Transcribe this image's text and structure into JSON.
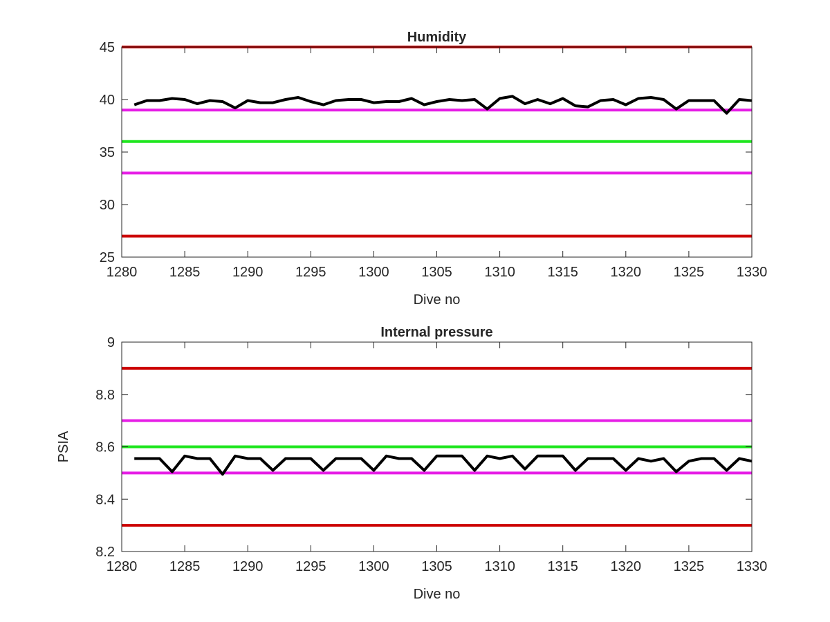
{
  "chart_data": [
    {
      "type": "line",
      "title": "Humidity",
      "xlabel": "Dive no",
      "ylabel": "",
      "xlim": [
        1280,
        1330
      ],
      "ylim": [
        25,
        45
      ],
      "xticks": [
        "1280",
        "1285",
        "1290",
        "1295",
        "1300",
        "1305",
        "1310",
        "1315",
        "1320",
        "1325",
        "1330"
      ],
      "yticks": [
        "25",
        "30",
        "35",
        "40",
        "45"
      ],
      "grid": false,
      "reference_lines": [
        {
          "y": 45,
          "color": "#cc0000"
        },
        {
          "y": 39,
          "color": "#e61ee6"
        },
        {
          "y": 36,
          "color": "#1ee61e"
        },
        {
          "y": 33,
          "color": "#e61ee6"
        },
        {
          "y": 27,
          "color": "#cc0000"
        }
      ],
      "series": [
        {
          "color": "#000000",
          "x": [
            1281,
            1282,
            1283,
            1284,
            1285,
            1286,
            1287,
            1288,
            1289,
            1290,
            1291,
            1292,
            1293,
            1294,
            1295,
            1296,
            1297,
            1298,
            1299,
            1300,
            1301,
            1302,
            1303,
            1304,
            1305,
            1306,
            1307,
            1308,
            1309,
            1310,
            1311,
            1312,
            1313,
            1314,
            1315,
            1316,
            1317,
            1318,
            1319,
            1320,
            1321,
            1322,
            1323,
            1324,
            1325,
            1326,
            1327,
            1328,
            1329,
            1330
          ],
          "y": [
            39.5,
            39.9,
            39.9,
            40.1,
            40.0,
            39.6,
            39.9,
            39.8,
            39.2,
            39.9,
            39.7,
            39.7,
            40.0,
            40.2,
            39.8,
            39.5,
            39.9,
            40.0,
            40.0,
            39.7,
            39.8,
            39.8,
            40.1,
            39.5,
            39.8,
            40.0,
            39.9,
            40.0,
            39.1,
            40.1,
            40.3,
            39.6,
            40.0,
            39.6,
            40.1,
            39.4,
            39.3,
            39.9,
            40.0,
            39.5,
            40.1,
            40.2,
            40.0,
            39.1,
            39.9,
            39.9,
            39.9,
            38.7,
            40.0,
            39.9
          ]
        }
      ]
    },
    {
      "type": "line",
      "title": "Internal pressure",
      "xlabel": "Dive no",
      "ylabel": "PSIA",
      "xlim": [
        1280,
        1330
      ],
      "ylim": [
        8.2,
        9.0
      ],
      "xticks": [
        "1280",
        "1285",
        "1290",
        "1295",
        "1300",
        "1305",
        "1310",
        "1315",
        "1320",
        "1325",
        "1330"
      ],
      "yticks": [
        "8.2",
        "8.4",
        "8.6",
        "8.8",
        "9"
      ],
      "grid": false,
      "reference_lines": [
        {
          "y": 8.9,
          "color": "#cc0000"
        },
        {
          "y": 8.7,
          "color": "#e61ee6"
        },
        {
          "y": 8.6,
          "color": "#1ee61e"
        },
        {
          "y": 8.5,
          "color": "#e61ee6"
        },
        {
          "y": 8.3,
          "color": "#cc0000"
        }
      ],
      "series": [
        {
          "color": "#000000",
          "x": [
            1281,
            1282,
            1283,
            1284,
            1285,
            1286,
            1287,
            1288,
            1289,
            1290,
            1291,
            1292,
            1293,
            1294,
            1295,
            1296,
            1297,
            1298,
            1299,
            1300,
            1301,
            1302,
            1303,
            1304,
            1305,
            1306,
            1307,
            1308,
            1309,
            1310,
            1311,
            1312,
            1313,
            1314,
            1315,
            1316,
            1317,
            1318,
            1319,
            1320,
            1321,
            1322,
            1323,
            1324,
            1325,
            1326,
            1327,
            1328,
            1329,
            1330
          ],
          "y": [
            8.555,
            8.555,
            8.555,
            8.505,
            8.565,
            8.555,
            8.555,
            8.495,
            8.565,
            8.555,
            8.555,
            8.51,
            8.555,
            8.555,
            8.555,
            8.51,
            8.555,
            8.555,
            8.555,
            8.51,
            8.565,
            8.555,
            8.555,
            8.51,
            8.565,
            8.565,
            8.565,
            8.51,
            8.565,
            8.555,
            8.565,
            8.515,
            8.565,
            8.565,
            8.565,
            8.51,
            8.555,
            8.555,
            8.555,
            8.51,
            8.555,
            8.545,
            8.555,
            8.505,
            8.545,
            8.555,
            8.555,
            8.51,
            8.555,
            8.545
          ]
        }
      ]
    }
  ]
}
